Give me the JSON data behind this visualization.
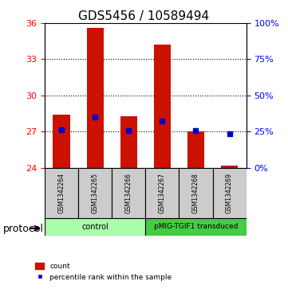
{
  "title": "GDS5456 / 10589494",
  "samples": [
    "GSM1342264",
    "GSM1342265",
    "GSM1342266",
    "GSM1342267",
    "GSM1342268",
    "GSM1342269"
  ],
  "bar_heights": [
    28.4,
    35.6,
    28.3,
    34.2,
    27.0,
    24.15
  ],
  "bar_bottom": 24,
  "percentile_values": [
    27.15,
    28.2,
    27.05,
    27.9,
    27.05,
    26.8
  ],
  "ylim_left": [
    24,
    36
  ],
  "ylim_right": [
    0,
    100
  ],
  "yticks_left": [
    24,
    27,
    30,
    33,
    36
  ],
  "yticks_right": [
    0,
    25,
    50,
    75,
    100
  ],
  "ytick_labels_right": [
    "0%",
    "25%",
    "50%",
    "75%",
    "100%"
  ],
  "bar_color": "#cc1100",
  "percentile_color": "#0000cc",
  "control_label": "control",
  "transduced_label": "pMIG-TGIF1 transduced",
  "control_color": "#aaffaa",
  "transduced_color": "#44cc44",
  "protocol_label": "protocol",
  "legend_count": "count",
  "legend_percentile": "percentile rank within the sample",
  "bar_width": 0.5,
  "label_bg_color": "#cccccc"
}
